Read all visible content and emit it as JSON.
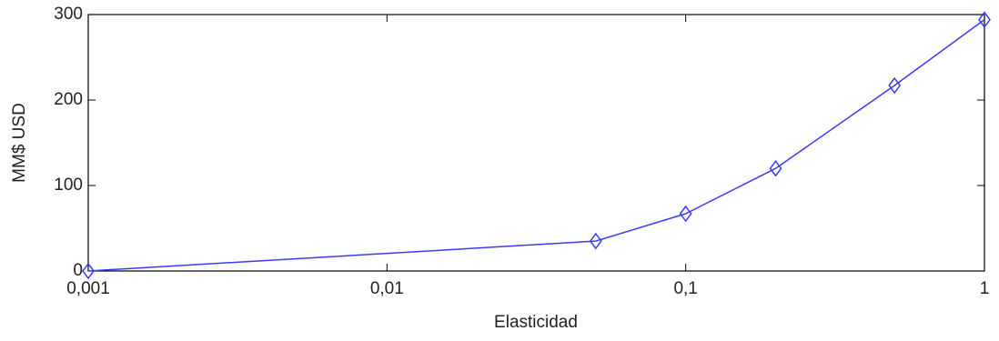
{
  "chart_data": {
    "type": "line",
    "xlabel": "Elasticidad",
    "ylabel": "MM$ USD",
    "x": [
      0.001,
      0.05,
      0.1,
      0.2,
      0.5,
      1
    ],
    "values": [
      0,
      35,
      67,
      120,
      217,
      294
    ],
    "color": "#3a3aff",
    "marker": "diamond",
    "xscale": "log",
    "xlim": [
      0.001,
      1
    ],
    "xticks": [
      {
        "value": 0.001,
        "label": "0,001"
      },
      {
        "value": 0.01,
        "label": "0,01"
      },
      {
        "value": 0.1,
        "label": "0,1"
      },
      1
    ],
    "ylim": [
      0,
      300
    ],
    "yticks": [
      0,
      100,
      200,
      300
    ],
    "grid": false
  }
}
